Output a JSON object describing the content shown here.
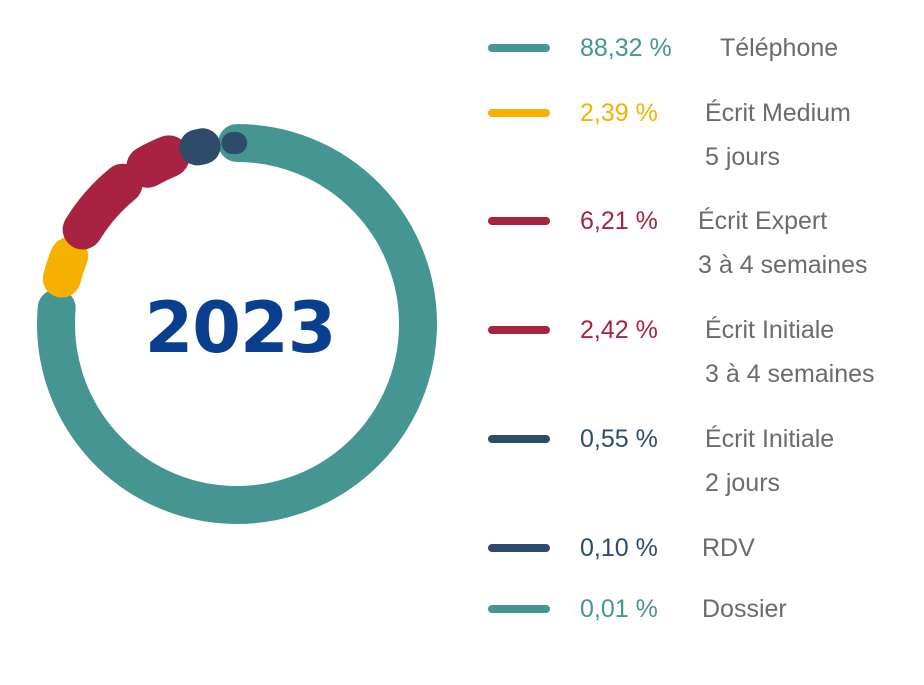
{
  "center_label": "2023",
  "colors": {
    "teal": "#459693",
    "yellow": "#F6B100",
    "crimson": "#A72341",
    "navy": "#2E4B6A",
    "center_text": "#0A3F8F",
    "label_gray": "#6B6B6B"
  },
  "chart_data": {
    "type": "donut",
    "title": "2023",
    "legend_position": "right",
    "series": [
      {
        "value": 88.32,
        "value_label": "88,32 %",
        "label": "Téléphone",
        "sublabel": "",
        "color": "#459693"
      },
      {
        "value": 2.39,
        "value_label": "2,39 %",
        "label": "Écrit Medium",
        "sublabel": "5 jours",
        "color": "#F6B100"
      },
      {
        "value": 6.21,
        "value_label": "6,21 %",
        "label": "Écrit Expert",
        "sublabel": "3 à 4 semaines",
        "color": "#A72341"
      },
      {
        "value": 2.42,
        "value_label": "2,42 %",
        "label": "Écrit Initiale",
        "sublabel": "3 à 4 semaines",
        "color": "#A72341"
      },
      {
        "value": 0.55,
        "value_label": "0,55 %",
        "label": "Écrit Initiale",
        "sublabel": "2 jours",
        "color": "#2E4B6A"
      },
      {
        "value": 0.1,
        "value_label": "0,10 %",
        "label": "RDV",
        "sublabel": "",
        "color": "#2E4B6A"
      },
      {
        "value": 0.01,
        "value_label": "0,01 %",
        "label": "Dossier",
        "sublabel": "",
        "color": "#459693"
      }
    ]
  }
}
